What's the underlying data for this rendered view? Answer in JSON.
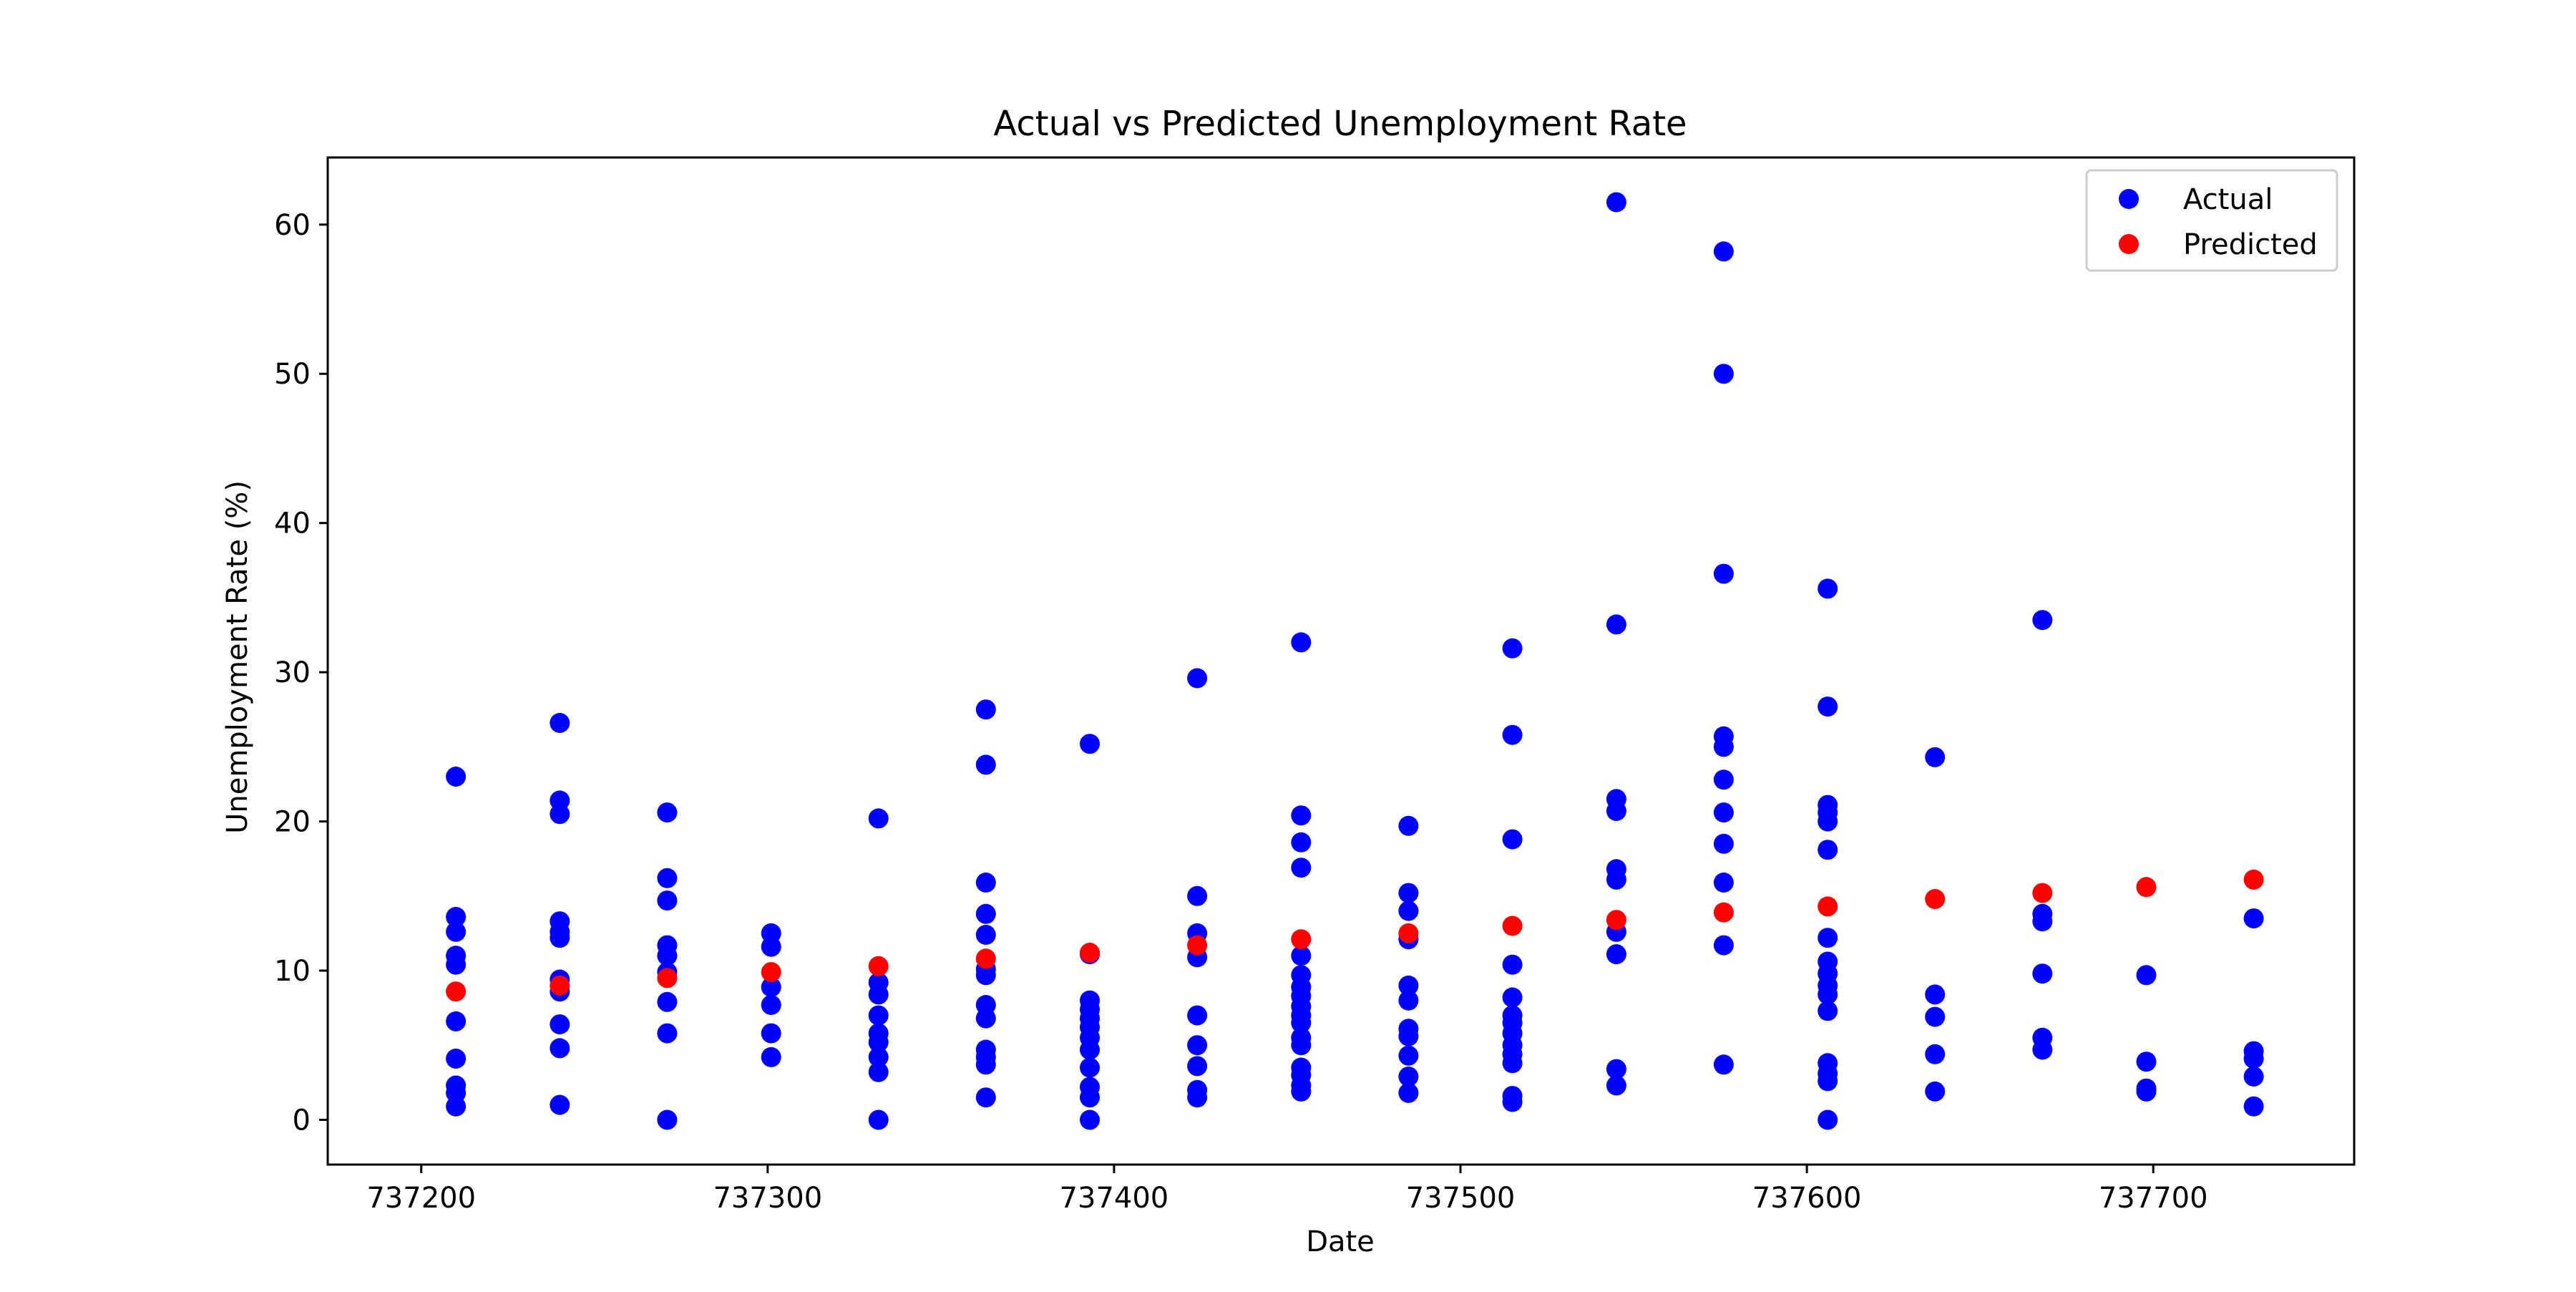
{
  "chart_data": {
    "type": "scatter",
    "title": "Actual vs Predicted Unemployment Rate",
    "xlabel": "Date",
    "ylabel": "Unemployment Rate (%)",
    "xlim": [
      737173,
      737758
    ],
    "ylim": [
      -3,
      64.5
    ],
    "xticks": [
      737200,
      737300,
      737400,
      737500,
      737600,
      737700
    ],
    "yticks": [
      0,
      10,
      20,
      30,
      40,
      50,
      60
    ],
    "grid": false,
    "legend_position": "top-right",
    "series": [
      {
        "name": "Actual",
        "color": "#0000ff",
        "points": [
          [
            737210,
            23.0
          ],
          [
            737210,
            13.6
          ],
          [
            737210,
            12.6
          ],
          [
            737210,
            11.0
          ],
          [
            737210,
            10.4
          ],
          [
            737210,
            6.6
          ],
          [
            737210,
            4.1
          ],
          [
            737210,
            2.3
          ],
          [
            737210,
            1.8
          ],
          [
            737210,
            0.9
          ],
          [
            737240,
            26.6
          ],
          [
            737240,
            21.4
          ],
          [
            737240,
            20.5
          ],
          [
            737240,
            13.3
          ],
          [
            737240,
            12.6
          ],
          [
            737240,
            12.2
          ],
          [
            737240,
            9.4
          ],
          [
            737240,
            8.6
          ],
          [
            737240,
            6.4
          ],
          [
            737240,
            4.8
          ],
          [
            737240,
            1.0
          ],
          [
            737271,
            20.6
          ],
          [
            737271,
            16.2
          ],
          [
            737271,
            14.7
          ],
          [
            737271,
            11.7
          ],
          [
            737271,
            11.0
          ],
          [
            737271,
            9.9
          ],
          [
            737271,
            7.9
          ],
          [
            737271,
            5.8
          ],
          [
            737271,
            0.0
          ],
          [
            737301,
            12.5
          ],
          [
            737301,
            11.6
          ],
          [
            737301,
            8.9
          ],
          [
            737301,
            7.7
          ],
          [
            737301,
            5.8
          ],
          [
            737301,
            4.2
          ],
          [
            737332,
            20.2
          ],
          [
            737332,
            9.2
          ],
          [
            737332,
            8.4
          ],
          [
            737332,
            7.0
          ],
          [
            737332,
            5.8
          ],
          [
            737332,
            5.2
          ],
          [
            737332,
            4.2
          ],
          [
            737332,
            3.2
          ],
          [
            737332,
            0.0
          ],
          [
            737363,
            27.5
          ],
          [
            737363,
            23.8
          ],
          [
            737363,
            15.9
          ],
          [
            737363,
            13.8
          ],
          [
            737363,
            12.4
          ],
          [
            737363,
            10.1
          ],
          [
            737363,
            9.7
          ],
          [
            737363,
            7.7
          ],
          [
            737363,
            6.8
          ],
          [
            737363,
            4.7
          ],
          [
            737363,
            4.2
          ],
          [
            737363,
            3.7
          ],
          [
            737363,
            1.5
          ],
          [
            737393,
            25.2
          ],
          [
            737393,
            11.1
          ],
          [
            737393,
            8.0
          ],
          [
            737393,
            7.4
          ],
          [
            737393,
            6.8
          ],
          [
            737393,
            6.2
          ],
          [
            737393,
            5.5
          ],
          [
            737393,
            4.7
          ],
          [
            737393,
            3.5
          ],
          [
            737393,
            2.2
          ],
          [
            737393,
            1.5
          ],
          [
            737393,
            0.0
          ],
          [
            737424,
            29.6
          ],
          [
            737424,
            15.0
          ],
          [
            737424,
            12.5
          ],
          [
            737424,
            10.9
          ],
          [
            737424,
            7.0
          ],
          [
            737424,
            5.0
          ],
          [
            737424,
            3.6
          ],
          [
            737424,
            2.0
          ],
          [
            737424,
            1.5
          ],
          [
            737454,
            32.0
          ],
          [
            737454,
            20.4
          ],
          [
            737454,
            18.6
          ],
          [
            737454,
            16.9
          ],
          [
            737454,
            11.0
          ],
          [
            737454,
            9.7
          ],
          [
            737454,
            8.9
          ],
          [
            737454,
            8.3
          ],
          [
            737454,
            7.6
          ],
          [
            737454,
            7.0
          ],
          [
            737454,
            6.5
          ],
          [
            737454,
            5.5
          ],
          [
            737454,
            5.0
          ],
          [
            737454,
            3.5
          ],
          [
            737454,
            3.0
          ],
          [
            737454,
            2.3
          ],
          [
            737454,
            1.9
          ],
          [
            737485,
            19.7
          ],
          [
            737485,
            15.2
          ],
          [
            737485,
            14.0
          ],
          [
            737485,
            12.1
          ],
          [
            737485,
            9.0
          ],
          [
            737485,
            8.0
          ],
          [
            737485,
            6.1
          ],
          [
            737485,
            5.6
          ],
          [
            737485,
            4.3
          ],
          [
            737485,
            2.9
          ],
          [
            737485,
            1.8
          ],
          [
            737515,
            31.6
          ],
          [
            737515,
            25.8
          ],
          [
            737515,
            18.8
          ],
          [
            737515,
            10.4
          ],
          [
            737515,
            8.2
          ],
          [
            737515,
            7.0
          ],
          [
            737515,
            6.5
          ],
          [
            737515,
            5.8
          ],
          [
            737515,
            5.0
          ],
          [
            737515,
            4.4
          ],
          [
            737515,
            3.8
          ],
          [
            737515,
            1.6
          ],
          [
            737515,
            1.2
          ],
          [
            737545,
            61.5
          ],
          [
            737545,
            33.2
          ],
          [
            737545,
            21.5
          ],
          [
            737545,
            20.7
          ],
          [
            737545,
            16.8
          ],
          [
            737545,
            16.1
          ],
          [
            737545,
            12.6
          ],
          [
            737545,
            11.1
          ],
          [
            737545,
            3.4
          ],
          [
            737545,
            2.3
          ],
          [
            737576,
            58.2
          ],
          [
            737576,
            50.0
          ],
          [
            737576,
            36.6
          ],
          [
            737576,
            25.7
          ],
          [
            737576,
            25.0
          ],
          [
            737576,
            22.8
          ],
          [
            737576,
            20.6
          ],
          [
            737576,
            18.5
          ],
          [
            737576,
            15.9
          ],
          [
            737576,
            11.7
          ],
          [
            737576,
            3.7
          ],
          [
            737606,
            35.6
          ],
          [
            737606,
            27.7
          ],
          [
            737606,
            21.1
          ],
          [
            737606,
            20.6
          ],
          [
            737606,
            20.0
          ],
          [
            737606,
            18.1
          ],
          [
            737606,
            12.2
          ],
          [
            737606,
            10.6
          ],
          [
            737606,
            9.8
          ],
          [
            737606,
            9.0
          ],
          [
            737606,
            8.4
          ],
          [
            737606,
            7.3
          ],
          [
            737606,
            3.8
          ],
          [
            737606,
            3.1
          ],
          [
            737606,
            2.6
          ],
          [
            737606,
            0.0
          ],
          [
            737637,
            24.3
          ],
          [
            737637,
            8.4
          ],
          [
            737637,
            6.9
          ],
          [
            737637,
            4.4
          ],
          [
            737637,
            1.9
          ],
          [
            737668,
            33.5
          ],
          [
            737668,
            13.8
          ],
          [
            737668,
            13.3
          ],
          [
            737668,
            9.8
          ],
          [
            737668,
            5.5
          ],
          [
            737668,
            4.7
          ],
          [
            737698,
            9.7
          ],
          [
            737698,
            3.9
          ],
          [
            737698,
            2.1
          ],
          [
            737698,
            1.9
          ],
          [
            737729,
            13.5
          ],
          [
            737729,
            4.6
          ],
          [
            737729,
            4.1
          ],
          [
            737729,
            2.9
          ],
          [
            737729,
            0.9
          ]
        ]
      },
      {
        "name": "Predicted",
        "color": "#ff0000",
        "points": [
          [
            737210,
            8.6
          ],
          [
            737240,
            9.0
          ],
          [
            737271,
            9.5
          ],
          [
            737301,
            9.9
          ],
          [
            737332,
            10.3
          ],
          [
            737363,
            10.8
          ],
          [
            737393,
            11.2
          ],
          [
            737424,
            11.7
          ],
          [
            737454,
            12.1
          ],
          [
            737485,
            12.5
          ],
          [
            737515,
            13.0
          ],
          [
            737545,
            13.4
          ],
          [
            737576,
            13.9
          ],
          [
            737606,
            14.3
          ],
          [
            737637,
            14.8
          ],
          [
            737668,
            15.2
          ],
          [
            737698,
            15.6
          ],
          [
            737729,
            16.1
          ]
        ]
      }
    ]
  }
}
